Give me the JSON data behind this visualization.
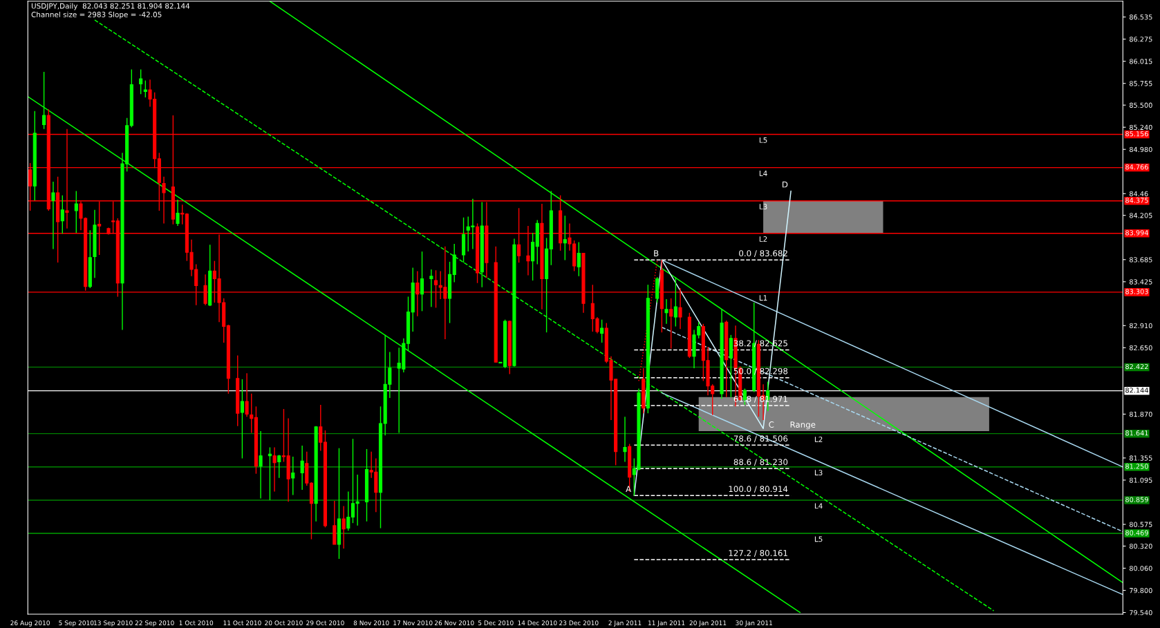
{
  "chart_data": {
    "type": "candlestick",
    "title": "USDJPY,Daily  82.043 82.251 81.904 82.144",
    "subtitle": "Channel size = 2983 Slope = -42.05",
    "x": [
      "2010-08-26",
      "2010-08-27",
      "2010-08-29",
      "2010-08-30",
      "2010-08-31",
      "2010-09-01",
      "2010-09-02",
      "2010-09-03",
      "2010-09-05",
      "2010-09-06",
      "2010-09-07",
      "2010-09-08",
      "2010-09-09",
      "2010-09-10",
      "2010-09-12",
      "2010-09-13",
      "2010-09-14",
      "2010-09-15",
      "2010-09-16",
      "2010-09-17",
      "2010-09-19",
      "2010-09-20",
      "2010-09-21",
      "2010-09-22",
      "2010-09-23",
      "2010-09-24",
      "2010-09-26",
      "2010-09-27",
      "2010-09-28",
      "2010-09-29",
      "2010-09-30",
      "2010-10-01",
      "2010-10-03",
      "2010-10-04",
      "2010-10-05",
      "2010-10-06",
      "2010-10-07",
      "2010-10-08",
      "2010-10-10",
      "2010-10-11",
      "2010-10-12",
      "2010-10-13",
      "2010-10-14",
      "2010-10-15",
      "2010-10-17",
      "2010-10-18",
      "2010-10-19",
      "2010-10-20",
      "2010-10-21",
      "2010-10-22",
      "2010-10-24",
      "2010-10-25",
      "2010-10-26",
      "2010-10-27",
      "2010-10-28",
      "2010-10-29",
      "2010-10-31",
      "2010-11-01",
      "2010-11-02",
      "2010-11-03",
      "2010-11-04",
      "2010-11-05",
      "2010-11-07",
      "2010-11-08",
      "2010-11-09",
      "2010-11-10",
      "2010-11-11",
      "2010-11-12",
      "2010-11-14",
      "2010-11-15",
      "2010-11-16",
      "2010-11-17",
      "2010-11-18",
      "2010-11-19",
      "2010-11-21",
      "2010-11-22",
      "2010-11-23",
      "2010-11-24",
      "2010-11-25",
      "2010-11-26",
      "2010-11-28",
      "2010-11-29",
      "2010-11-30",
      "2010-12-01",
      "2010-12-02",
      "2010-12-03",
      "2010-12-05",
      "2010-12-06",
      "2010-12-07",
      "2010-12-08",
      "2010-12-09",
      "2010-12-10",
      "2010-12-12",
      "2010-12-13",
      "2010-12-14",
      "2010-12-15",
      "2010-12-16",
      "2010-12-17",
      "2010-12-19",
      "2010-12-20",
      "2010-12-21",
      "2010-12-22",
      "2010-12-23",
      "2010-12-24",
      "2010-12-26",
      "2010-12-27",
      "2010-12-28",
      "2010-12-29",
      "2010-12-30",
      "2010-12-31",
      "2011-01-02",
      "2011-01-03",
      "2011-01-04",
      "2011-01-05",
      "2011-01-06",
      "2011-01-07",
      "2011-01-09",
      "2011-01-10",
      "2011-01-11",
      "2011-01-12",
      "2011-01-13",
      "2011-01-14",
      "2011-01-16",
      "2011-01-17",
      "2011-01-18",
      "2011-01-19",
      "2011-01-20",
      "2011-01-21",
      "2011-01-23",
      "2011-01-24",
      "2011-01-25",
      "2011-01-26",
      "2011-01-27",
      "2011-01-28",
      "2011-01-30",
      "2011-01-31",
      "2011-02-01",
      "2011-02-02"
    ],
    "ohlc": [
      [
        84.74,
        84.82,
        84.26,
        84.55
      ],
      [
        84.55,
        85.43,
        84.38,
        85.17
      ],
      [
        85.27,
        85.89,
        85.22,
        85.38
      ],
      [
        85.38,
        85.45,
        84.26,
        84.28
      ],
      [
        84.38,
        84.6,
        83.81,
        84.47
      ],
      [
        84.47,
        84.66,
        83.65,
        84.13
      ],
      [
        84.14,
        84.44,
        83.99,
        84.27
      ],
      [
        84.26,
        85.22,
        84.05,
        84.24
      ],
      [
        84.26,
        84.49,
        84.0,
        84.34
      ],
      [
        84.34,
        84.37,
        84.03,
        84.17
      ],
      [
        84.17,
        84.18,
        83.32,
        83.37
      ],
      [
        83.37,
        84.03,
        83.35,
        83.71
      ],
      [
        83.72,
        84.27,
        83.47,
        84.09
      ],
      [
        84.1,
        84.37,
        83.74,
        84.08
      ],
      [
        84.05,
        84.06,
        83.98,
        83.99
      ],
      [
        84.14,
        84.37,
        83.99,
        84.13
      ],
      [
        84.14,
        84.17,
        83.25,
        83.41
      ],
      [
        83.41,
        84.94,
        82.86,
        84.81
      ],
      [
        84.81,
        85.35,
        84.72,
        85.26
      ],
      [
        85.26,
        85.92,
        85.24,
        85.74
      ],
      [
        85.75,
        85.92,
        85.63,
        85.81
      ],
      [
        85.66,
        85.79,
        85.59,
        85.68
      ],
      [
        85.68,
        85.8,
        85.48,
        85.57
      ],
      [
        85.57,
        85.65,
        84.76,
        84.87
      ],
      [
        84.87,
        84.94,
        84.26,
        84.59
      ],
      [
        84.58,
        84.66,
        84.11,
        84.47
      ],
      [
        84.54,
        85.38,
        84.1,
        84.16
      ],
      [
        84.11,
        84.39,
        84.08,
        84.23
      ],
      [
        84.23,
        84.33,
        84.1,
        84.22
      ],
      [
        84.22,
        84.23,
        83.67,
        83.77
      ],
      [
        83.77,
        83.92,
        83.49,
        83.57
      ],
      [
        83.57,
        83.63,
        83.15,
        83.38
      ],
      [
        83.38,
        83.51,
        83.15,
        83.17
      ],
      [
        83.15,
        83.86,
        83.14,
        83.55
      ],
      [
        83.55,
        83.67,
        83.18,
        83.46
      ],
      [
        83.46,
        83.98,
        82.95,
        83.18
      ],
      [
        83.18,
        83.23,
        82.71,
        82.9
      ],
      [
        82.91,
        82.92,
        82.11,
        82.29
      ],
      [
        82.29,
        82.56,
        81.73,
        81.88
      ],
      [
        81.89,
        82.28,
        81.35,
        82.02
      ],
      [
        82.02,
        82.35,
        81.84,
        81.87
      ],
      [
        81.86,
        82.11,
        81.65,
        81.82
      ],
      [
        81.83,
        81.96,
        81.17,
        81.26
      ],
      [
        81.26,
        81.67,
        80.88,
        81.38
      ],
      [
        81.38,
        81.48,
        80.86,
        81.4
      ],
      [
        81.38,
        81.48,
        80.96,
        81.3
      ],
      [
        81.31,
        81.39,
        81.12,
        81.38
      ],
      [
        81.38,
        81.93,
        81.31,
        81.37
      ],
      [
        81.38,
        81.82,
        80.84,
        81.11
      ],
      [
        81.12,
        81.37,
        80.92,
        81.18
      ],
      [
        81.18,
        81.5,
        80.98,
        81.32
      ],
      [
        81.29,
        81.43,
        81.03,
        81.06
      ],
      [
        81.06,
        81.07,
        80.4,
        80.82
      ],
      [
        80.82,
        81.73,
        80.61,
        81.72
      ],
      [
        81.72,
        81.98,
        81.44,
        81.54
      ],
      [
        81.54,
        81.68,
        80.54,
        80.56
      ],
      [
        80.56,
        80.85,
        80.34,
        80.34
      ],
      [
        80.34,
        81.47,
        80.17,
        80.64
      ],
      [
        80.64,
        80.79,
        80.29,
        80.52
      ],
      [
        80.53,
        80.96,
        80.5,
        80.66
      ],
      [
        80.66,
        81.58,
        80.59,
        80.82
      ],
      [
        80.82,
        81.16,
        80.56,
        80.84
      ],
      [
        80.84,
        81.46,
        80.61,
        81.22
      ],
      [
        81.21,
        81.43,
        81.12,
        81.19
      ],
      [
        81.19,
        81.35,
        80.72,
        80.95
      ],
      [
        80.95,
        81.96,
        80.53,
        81.76
      ],
      [
        81.76,
        82.8,
        81.62,
        82.22
      ],
      [
        82.22,
        82.6,
        82.06,
        82.41
      ],
      [
        82.41,
        82.65,
        81.65,
        82.47
      ],
      [
        82.4,
        82.76,
        82.36,
        82.7
      ],
      [
        82.7,
        83.25,
        82.62,
        83.07
      ],
      [
        83.07,
        83.59,
        82.84,
        83.41
      ],
      [
        83.41,
        83.55,
        83.02,
        83.28
      ],
      [
        83.28,
        83.78,
        83.08,
        83.46
      ],
      [
        83.46,
        83.57,
        83.13,
        83.49
      ],
      [
        83.44,
        83.56,
        83.12,
        83.39
      ],
      [
        83.38,
        83.55,
        83.22,
        83.36
      ],
      [
        83.36,
        83.84,
        82.75,
        83.23
      ],
      [
        83.23,
        83.66,
        82.94,
        83.51
      ],
      [
        83.51,
        83.87,
        83.42,
        83.74
      ],
      [
        83.74,
        84.18,
        83.65,
        83.98
      ],
      [
        84.03,
        84.19,
        83.78,
        84.07
      ],
      [
        84.07,
        84.4,
        83.81,
        84.08
      ],
      [
        84.07,
        84.11,
        83.41,
        83.53
      ],
      [
        83.54,
        84.36,
        83.36,
        84.08
      ],
      [
        84.08,
        84.36,
        83.47,
        83.65
      ],
      [
        83.65,
        83.84,
        82.48,
        82.48
      ],
      [
        82.47,
        82.48,
        82.47,
        82.48
      ],
      [
        82.43,
        82.98,
        82.41,
        82.96
      ],
      [
        82.96,
        82.97,
        82.34,
        82.44
      ],
      [
        82.44,
        83.93,
        82.43,
        83.86
      ],
      [
        83.86,
        84.29,
        83.65,
        83.73
      ],
      [
        83.73,
        84.08,
        83.5,
        83.67
      ],
      [
        83.67,
        84.0,
        83.44,
        83.89
      ],
      [
        83.84,
        84.15,
        83.63,
        84.11
      ],
      [
        84.11,
        84.34,
        83.1,
        83.46
      ],
      [
        83.46,
        83.94,
        82.83,
        83.81
      ],
      [
        83.81,
        84.49,
        83.62,
        84.26
      ],
      [
        84.26,
        84.44,
        83.79,
        83.88
      ],
      [
        83.88,
        84.2,
        83.68,
        83.92
      ],
      [
        83.94,
        84.11,
        83.79,
        83.87
      ],
      [
        83.87,
        83.91,
        83.55,
        83.61
      ],
      [
        83.6,
        83.89,
        83.49,
        83.76
      ],
      [
        83.76,
        83.76,
        83.06,
        83.17
      ],
      [
        83.17,
        83.39,
        82.84,
        82.99
      ],
      [
        82.99,
        83.01,
        82.82,
        82.84
      ],
      [
        82.82,
        82.98,
        82.71,
        82.88
      ],
      [
        82.88,
        82.94,
        82.47,
        82.49
      ],
      [
        82.5,
        82.55,
        81.8,
        82.27
      ],
      [
        82.28,
        82.28,
        81.27,
        81.43
      ],
      [
        81.43,
        81.84,
        81.31,
        81.48
      ],
      [
        81.49,
        81.52,
        80.96,
        81.13
      ],
      [
        81.16,
        81.35,
        80.91,
        81.23
      ],
      [
        81.22,
        82.17,
        81.21,
        82.12
      ],
      [
        82.28,
        82.41,
        81.88,
        81.94
      ],
      [
        81.94,
        83.39,
        81.88,
        83.23
      ],
      [
        83.23,
        83.48,
        83.18,
        83.46
      ],
      [
        83.56,
        83.68,
        82.83,
        83.11
      ],
      [
        83.06,
        83.22,
        82.93,
        83.1
      ],
      [
        83.1,
        83.23,
        82.64,
        83.02
      ],
      [
        83.01,
        83.48,
        82.9,
        83.13
      ],
      [
        83.12,
        83.35,
        82.87,
        83.01
      ],
      [
        83.01,
        83.06,
        82.53,
        82.55
      ],
      [
        82.55,
        82.86,
        82.41,
        82.8
      ],
      [
        82.8,
        82.95,
        82.76,
        82.9
      ],
      [
        82.9,
        82.93,
        82.26,
        82.5
      ],
      [
        82.5,
        82.66,
        82.09,
        82.2
      ],
      [
        82.2,
        82.22,
        81.86,
        82.11
      ],
      [
        82.11,
        83.1,
        82.05,
        82.94
      ],
      [
        82.95,
        82.97,
        82.07,
        82.51
      ],
      [
        82.53,
        82.8,
        82.07,
        82.76
      ],
      [
        82.76,
        82.91,
        81.96,
        82.41
      ],
      [
        82.41,
        82.43,
        82.03,
        82.04
      ],
      [
        82.04,
        82.17,
        81.98,
        82.15
      ],
      [
        82.15,
        83.18,
        82.13,
        82.7
      ],
      [
        82.69,
        82.74,
        81.84,
        82.08
      ],
      [
        82.09,
        82.22,
        81.8,
        82.04
      ],
      [
        82.043,
        82.251,
        81.904,
        82.144
      ]
    ],
    "colors": [
      "#ff0000",
      "#00ff00",
      "#00ff00",
      "#ff0000",
      "#00ff00",
      "#ff0000",
      "#00ff00",
      "#ff0000",
      "#00ff00",
      "#ff0000",
      "#ff0000",
      "#00ff00",
      "#00ff00",
      "#ff0000",
      "#ff0000",
      "#ff0000",
      "#ff0000",
      "#00ff00",
      "#00ff00",
      "#00ff00",
      "#00ff00",
      "#00ff00",
      "#ff0000",
      "#ff0000",
      "#ff0000",
      "#ff0000",
      "#ff0000",
      "#00ff00",
      "#ff0000",
      "#ff0000",
      "#ff0000",
      "#ff0000",
      "#ff0000",
      "#00ff00",
      "#ff0000",
      "#ff0000",
      "#ff0000",
      "#ff0000",
      "#ff0000",
      "#00ff00",
      "#ff0000",
      "#ff0000",
      "#ff0000",
      "#00ff00",
      "#00ff00",
      "#ff0000",
      "#00ff00",
      "#ff0000",
      "#ff0000",
      "#00ff00",
      "#00ff00",
      "#ff0000",
      "#ff0000",
      "#00ff00",
      "#ff0000",
      "#ff0000",
      "#ff0000",
      "#00ff00",
      "#ff0000",
      "#00ff00",
      "#00ff00",
      "#00ff00",
      "#00ff00",
      "#ff0000",
      "#ff0000",
      "#00ff00",
      "#00ff00",
      "#00ff00",
      "#00ff00",
      "#00ff00",
      "#00ff00",
      "#00ff00",
      "#ff0000",
      "#00ff00",
      "#00ff00",
      "#ff0000",
      "#ff0000",
      "#ff0000",
      "#00ff00",
      "#00ff00",
      "#00ff00",
      "#00ff00",
      "#00ff00",
      "#ff0000",
      "#00ff00",
      "#ff0000",
      "#ff0000",
      "#00ff00",
      "#00ff00",
      "#ff0000",
      "#00ff00",
      "#ff0000",
      "#ff0000",
      "#00ff00",
      "#00ff00",
      "#ff0000",
      "#00ff00",
      "#00ff00",
      "#ff0000",
      "#00ff00",
      "#ff0000",
      "#ff0000",
      "#00ff00",
      "#ff0000",
      "#ff0000",
      "#ff0000",
      "#00ff00",
      "#ff0000",
      "#ff0000",
      "#ff0000",
      "#00ff00",
      "#ff0000",
      "#00ff00",
      "#00ff00",
      "#ff0000",
      "#00ff00",
      "#00ff00",
      "#ff0000",
      "#00ff00",
      "#ff0000",
      "#00ff00",
      "#ff0000",
      "#ff0000",
      "#00ff00",
      "#00ff00",
      "#ff0000",
      "#ff0000",
      "#ff0000",
      "#00ff00",
      "#ff0000",
      "#00ff00",
      "#ff0000",
      "#ff0000",
      "#00ff00",
      "#00ff00",
      "#ff0000",
      "#ff0000",
      "#00ff00"
    ],
    "series": [
      {
        "type": "line",
        "x": [
          "2011-02-01",
          "2011-02-27"
        ],
        "values": [
          null,
          null
        ],
        "lower": [
          83.994,
          83.994
        ],
        "upper": [
          84.375,
          84.375
        ],
        "color": "#808080"
      },
      {
        "type": "line",
        "x": [
          "2011-01-18",
          "2011-03-22"
        ],
        "values": [
          null,
          null
        ],
        "lower": [
          81.67,
          81.67
        ],
        "upper": [
          82.07,
          82.07
        ],
        "color": "#808080"
      },
      {
        "type": "line",
        "x": [
          "2010-10-17",
          "2011-04-20"
        ],
        "values": [
          86.72,
          79.89
        ],
        "color": "#00ff00",
        "line_style": "solid"
      },
      {
        "type": "line",
        "x": [
          "2010-08-25T12:00",
          "2011-02-09"
        ],
        "values": [
          85.6,
          79.54
        ],
        "color": "#00ff00",
        "line_style": "solid"
      },
      {
        "type": "line",
        "x": [
          "2010-09-09",
          "2011-03-23"
        ],
        "values": [
          86.5,
          79.56
        ],
        "color": "#00ff00",
        "line_style": "dashed"
      },
      {
        "type": "line",
        "x": [
          "2011-01-10",
          "2011-04-20"
        ],
        "values": [
          83.68,
          81.25
        ],
        "color": "#a8d8f0",
        "line_style": "solid"
      },
      {
        "type": "line",
        "x": [
          "2011-01-10",
          "2011-04-20"
        ],
        "values": [
          82.89,
          80.49
        ],
        "color": "#a8d8f0",
        "line_style": "dashed"
      },
      {
        "type": "line",
        "x": [
          "2011-01-10",
          "2011-04-20"
        ],
        "values": [
          82.12,
          79.75
        ],
        "color": "#a8d8f0",
        "line_style": "solid"
      },
      {
        "type": "line",
        "x": [
          "2011-01-05",
          "2011-01-09"
        ],
        "values": [
          82.26,
          83.67
        ],
        "color": "#ff0000",
        "line_style": "dotted"
      },
      {
        "type": "line",
        "x": [
          "2011-01-04",
          "2011-01-10",
          "2011-02-01",
          "2011-02-07"
        ],
        "values": [
          80.914,
          83.682,
          81.7,
          84.49
        ],
        "color": "#d0f4ff",
        "line_style": "solid"
      },
      {
        "type": "line",
        "x": [
          "2011-01-04",
          "2011-02-07"
        ],
        "values": [
          83.682,
          83.682
        ],
        "color": "#ffffff",
        "line_style": "dashed"
      },
      {
        "type": "line",
        "x": [
          "2011-01-04",
          "2011-02-07"
        ],
        "values": [
          82.625,
          82.625
        ],
        "color": "#ffffff",
        "line_style": "dashed"
      },
      {
        "type": "line",
        "x": [
          "2011-01-04",
          "2011-02-07"
        ],
        "values": [
          82.298,
          82.298
        ],
        "color": "#ffffff",
        "line_style": "dashed"
      },
      {
        "type": "line",
        "x": [
          "2011-01-04",
          "2011-02-07"
        ],
        "values": [
          81.971,
          81.971
        ],
        "color": "#ffffff",
        "line_style": "dashed"
      },
      {
        "type": "line",
        "x": [
          "2011-01-04",
          "2011-02-07"
        ],
        "values": [
          81.506,
          81.506
        ],
        "color": "#ffffff",
        "line_style": "dashed"
      },
      {
        "type": "line",
        "x": [
          "2011-01-04",
          "2011-02-07"
        ],
        "values": [
          81.23,
          81.23
        ],
        "color": "#ffffff",
        "line_style": "dashed"
      },
      {
        "type": "line",
        "x": [
          "2011-01-04",
          "2011-02-07"
        ],
        "values": [
          80.914,
          80.914
        ],
        "color": "#ffffff",
        "line_style": "dashed"
      },
      {
        "type": "line",
        "x": [
          "2011-01-04",
          "2011-02-07"
        ],
        "values": [
          80.161,
          80.161
        ],
        "color": "#ffffff",
        "line_style": "dashed"
      }
    ],
    "ref_lines": [
      {
        "axis": "y",
        "value": 85.156,
        "label": "85.156",
        "color": "#ff0000"
      },
      {
        "axis": "y",
        "value": 84.766,
        "label": "84.766",
        "color": "#ff0000"
      },
      {
        "axis": "y",
        "value": 84.375,
        "label": "84.375",
        "color": "#ff0000"
      },
      {
        "axis": "y",
        "value": 83.994,
        "label": "83.994",
        "color": "#ff0000"
      },
      {
        "axis": "y",
        "value": 83.303,
        "label": "83.303",
        "color": "#ff0000"
      },
      {
        "axis": "y",
        "value": 82.422,
        "label": "82.422",
        "color": "#008000"
      },
      {
        "axis": "y",
        "value": 82.144,
        "label": "82.144",
        "color": "#ffffff"
      },
      {
        "axis": "y",
        "value": 81.641,
        "label": "81.641",
        "color": "#008000"
      },
      {
        "axis": "y",
        "value": 81.25,
        "label": "81.250",
        "color": "#00a000"
      },
      {
        "axis": "y",
        "value": 80.859,
        "label": "80.859",
        "color": "#008000"
      },
      {
        "axis": "y",
        "value": 80.469,
        "label": "80.469",
        "color": "#00a000"
      }
    ],
    "annotations": [
      {
        "text": "A",
        "x": "2011-01-04",
        "y": 80.914
      },
      {
        "text": "B",
        "x": "2011-01-10",
        "y": 83.682
      },
      {
        "text": "C",
        "x": "2011-02-04",
        "y": 81.67
      },
      {
        "text": "D",
        "x": "2011-02-07",
        "y": 84.49
      },
      {
        "text": "0.0 / 83.682",
        "x": "2011-02-07",
        "y": 83.682
      },
      {
        "text": "38.2 / 82.625",
        "x": "2011-02-07",
        "y": 82.625
      },
      {
        "text": "50.0 / 82.298",
        "x": "2011-02-07",
        "y": 82.298
      },
      {
        "text": "61.8 / 81.971",
        "x": "2011-02-07",
        "y": 81.971
      },
      {
        "text": "78.6 / 81.506",
        "x": "2011-02-07",
        "y": 81.506
      },
      {
        "text": "88.6 / 81.230",
        "x": "2011-02-07",
        "y": 81.23
      },
      {
        "text": "100.0 / 80.914",
        "x": "2011-02-07",
        "y": 80.914
      },
      {
        "text": "127.2 / 80.161",
        "x": "2011-02-07",
        "y": 80.161
      },
      {
        "text": "Range",
        "x": "2011-02-13",
        "y": 81.67
      },
      {
        "text": "L5",
        "x": "2011-02-01",
        "y": 85.156
      },
      {
        "text": "L4",
        "x": "2011-02-01",
        "y": 84.766
      },
      {
        "text": "L3",
        "x": "2011-02-01",
        "y": 84.375
      },
      {
        "text": "L2",
        "x": "2011-02-01",
        "y": 83.994
      },
      {
        "text": "L1",
        "x": "2011-02-01",
        "y": 83.303
      },
      {
        "text": "L2",
        "x": "2011-02-13",
        "y": 81.641
      },
      {
        "text": "L3",
        "x": "2011-02-13",
        "y": 81.25
      },
      {
        "text": "L4",
        "x": "2011-02-13",
        "y": 80.859
      },
      {
        "text": "L5",
        "x": "2011-02-13",
        "y": 80.469
      }
    ],
    "xlim": [
      "2010-08-25T12:00",
      "2011-04-20"
    ],
    "ylim": [
      79.52,
      86.72
    ],
    "xticks": [
      {
        "value": "2010-08-26",
        "label": "26 Aug 2010"
      },
      {
        "value": "2010-09-05",
        "label": "5 Sep 2010"
      },
      {
        "value": "2010-09-13",
        "label": "13 Sep 2010"
      },
      {
        "value": "2010-09-22",
        "label": "22 Sep 2010"
      },
      {
        "value": "2010-10-01",
        "label": "1 Oct 2010"
      },
      {
        "value": "2010-10-11",
        "label": "11 Oct 2010"
      },
      {
        "value": "2010-10-20",
        "label": "20 Oct 2010"
      },
      {
        "value": "2010-10-29",
        "label": "29 Oct 2010"
      },
      {
        "value": "2010-11-08",
        "label": "8 Nov 2010"
      },
      {
        "value": "2010-11-17",
        "label": "17 Nov 2010"
      },
      {
        "value": "2010-11-26",
        "label": "26 Nov 2010"
      },
      {
        "value": "2010-12-05",
        "label": "5 Dec 2010"
      },
      {
        "value": "2010-12-14",
        "label": "14 Dec 2010"
      },
      {
        "value": "2010-12-23",
        "label": "23 Dec 2010"
      },
      {
        "value": "2011-01-02",
        "label": "2 Jan 2011"
      },
      {
        "value": "2011-01-11",
        "label": "11 Jan 2011"
      },
      {
        "value": "2011-01-20",
        "label": "20 Jan 2011"
      },
      {
        "value": "2011-01-30",
        "label": "30 Jan 2011"
      }
    ],
    "yticks": [
      86.535,
      86.275,
      86.015,
      85.755,
      {
        "value": 85.5,
        "label": "85.500"
      },
      {
        "value": 85.24,
        "label": "85.240"
      },
      {
        "value": 84.98,
        "label": "84.980"
      },
      84.46,
      84.205,
      83.685,
      83.425,
      {
        "value": 82.91,
        "label": "82.910"
      },
      {
        "value": 82.65,
        "label": "82.650"
      },
      {
        "value": 81.87,
        "label": "81.870"
      },
      81.355,
      81.095,
      80.575,
      {
        "value": 80.32,
        "label": "80.320"
      },
      {
        "value": 80.06,
        "label": "80.060"
      },
      {
        "value": 79.8,
        "label": "79.800"
      },
      {
        "value": 79.54,
        "label": "79.540"
      }
    ]
  }
}
